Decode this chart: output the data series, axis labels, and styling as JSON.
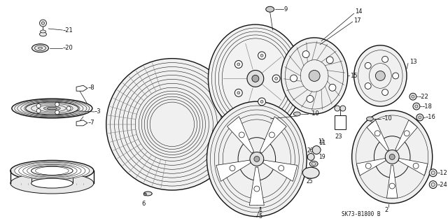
{
  "bg_color": "#ffffff",
  "line_color": "#111111",
  "caption": "SK73-B1800 B",
  "figsize": [
    6.4,
    3.19
  ],
  "dpi": 100
}
